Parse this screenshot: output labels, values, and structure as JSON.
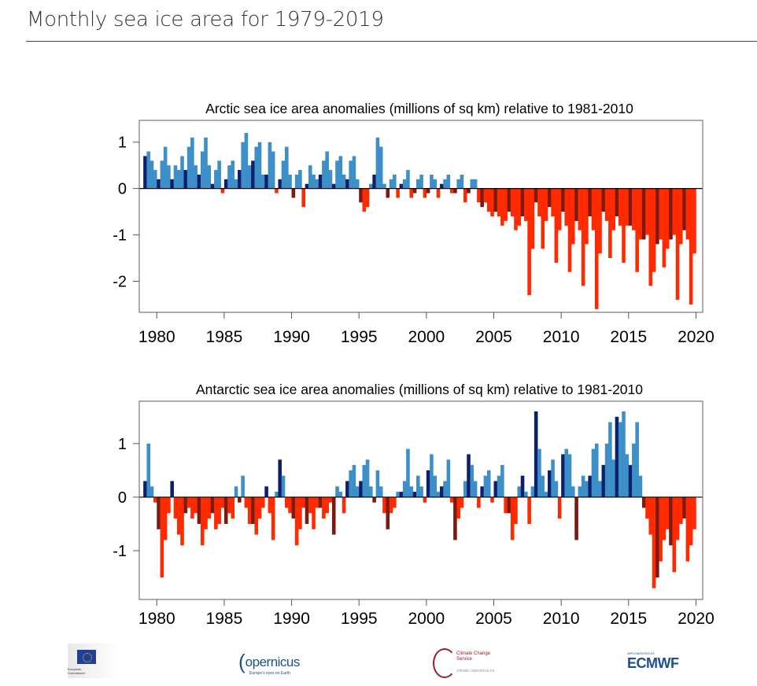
{
  "page": {
    "title": "Monthly sea ice area for 1979-2019"
  },
  "logos": {
    "eu": "European Commission",
    "copernicus": "opernicus",
    "copernicus_tagline": "Europe's eyes on Earth",
    "c3s": "Climate Change Service",
    "c3s_url": "climate.copernicus.eu",
    "ecmwf_implemented": "IMPLEMENTED BY",
    "ecmwf": "ECMWF"
  },
  "colors": {
    "positive": "#3d8fc8",
    "positive_dark": "#0c1f6e",
    "negative": "#ff2a00",
    "negative_dark": "#7a1a10"
  },
  "chart_data": [
    {
      "type": "bar",
      "title": "Arctic sea ice area anomalies (millions of sq km) relative to 1981-2010",
      "xlabel": "",
      "ylabel": "",
      "x_start": 1979,
      "x_step": 0.25,
      "xlim": [
        1978.7,
        2020.5
      ],
      "ylim": [
        -2.67,
        1.47
      ],
      "xticks": [
        "1980",
        "1985",
        "1990",
        "1995",
        "2000",
        "2005",
        "2010",
        "2015",
        "2020"
      ],
      "yticks": [
        "1",
        "0",
        "-1",
        "-2"
      ],
      "values": [
        0.7,
        0.8,
        0.6,
        0.4,
        0.2,
        0.6,
        0.9,
        0.5,
        0.2,
        0.5,
        0.4,
        0.7,
        0.4,
        0.9,
        1.1,
        0.5,
        0.3,
        0.8,
        1.1,
        0.5,
        0.1,
        0.4,
        0.6,
        -0.1,
        0.2,
        0.5,
        0.6,
        0.2,
        0.4,
        1.0,
        1.2,
        0.5,
        0.6,
        0.9,
        1.0,
        0.3,
        0.3,
        1.0,
        0.8,
        -0.1,
        0.2,
        0.6,
        0.9,
        0.3,
        -0.2,
        0.3,
        0.4,
        -0.4,
        0.1,
        0.5,
        0.3,
        0.2,
        0.3,
        0.6,
        0.8,
        0.4,
        0.1,
        0.6,
        0.7,
        0.3,
        0.2,
        0.6,
        0.7,
        0.2,
        -0.3,
        -0.5,
        -0.4,
        0.1,
        0.3,
        1.1,
        0.9,
        0.1,
        -0.2,
        0.2,
        0.3,
        -0.2,
        0.1,
        0.2,
        0.4,
        -0.2,
        -0.1,
        0.2,
        0.3,
        -0.2,
        -0.1,
        0.3,
        0.2,
        -0.2,
        0.1,
        0.2,
        0.3,
        -0.1,
        -0.1,
        0.2,
        0.3,
        -0.3,
        -0.1,
        0.2,
        0.2,
        -0.3,
        -0.4,
        -0.3,
        -0.5,
        -0.6,
        -0.5,
        -0.6,
        -0.8,
        -0.7,
        -0.5,
        -0.6,
        -0.9,
        -0.8,
        -0.6,
        -0.7,
        -2.3,
        -1.3,
        -0.3,
        -0.6,
        -1.3,
        -0.7,
        -0.4,
        -0.6,
        -1.6,
        -0.9,
        -0.5,
        -0.8,
        -1.8,
        -1.2,
        -0.7,
        -0.9,
        -2.1,
        -1.2,
        -0.6,
        -0.9,
        -2.6,
        -1.4,
        -0.5,
        -0.7,
        -1.5,
        -0.9,
        -0.6,
        -0.8,
        -1.6,
        -0.8,
        -0.8,
        -0.9,
        -1.8,
        -1.1,
        -1.1,
        -1.0,
        -2.1,
        -1.8,
        -1.2,
        -1.1,
        -1.7,
        -1.3,
        -1.1,
        -1.0,
        -2.4,
        -1.2,
        -0.9,
        -1.1,
        -2.5,
        -1.4
      ]
    },
    {
      "type": "bar",
      "title": "Antarctic sea ice area anomalies (millions of sq km) relative to 1981-2010",
      "xlabel": "",
      "ylabel": "",
      "x_start": 1979,
      "x_step": 0.25,
      "xlim": [
        1978.7,
        2020.5
      ],
      "ylim": [
        -1.91,
        1.79
      ],
      "xticks": [
        "1980",
        "1985",
        "1990",
        "1995",
        "2000",
        "2005",
        "2010",
        "2015",
        "2020"
      ],
      "yticks": [
        "1",
        "0",
        "-1"
      ],
      "values": [
        0.3,
        1.0,
        0.2,
        -0.1,
        -0.6,
        -1.5,
        -0.8,
        -0.3,
        0.3,
        -0.4,
        -0.7,
        -0.9,
        -0.3,
        -0.2,
        -0.4,
        -0.3,
        -0.5,
        -0.9,
        -0.6,
        -0.4,
        -0.3,
        -0.6,
        -0.5,
        -0.2,
        -0.5,
        -0.3,
        -0.4,
        0.2,
        -0.1,
        0.4,
        -0.2,
        -0.5,
        -0.5,
        -0.7,
        -0.4,
        -0.2,
        0.2,
        -0.3,
        -0.8,
        0.1,
        0.7,
        0.4,
        -0.2,
        -0.3,
        -0.4,
        -0.9,
        -0.6,
        -0.2,
        -0.5,
        -0.3,
        -0.6,
        -0.2,
        -0.2,
        -0.4,
        -0.3,
        -0.1,
        -0.7,
        0.2,
        0.1,
        -0.3,
        0.3,
        0.5,
        0.6,
        0.2,
        0.3,
        0.6,
        0.7,
        0.2,
        -0.1,
        0.5,
        0.2,
        -0.3,
        -0.6,
        -0.3,
        -0.2,
        0.1,
        0.1,
        0.3,
        0.9,
        0.2,
        0.1,
        0.4,
        0.2,
        -0.1,
        0.5,
        0.8,
        0.4,
        0.1,
        0.2,
        0.3,
        0.7,
        -0.1,
        -0.8,
        -0.4,
        -0.2,
        0.3,
        0.8,
        0.6,
        0.3,
        -0.2,
        0.2,
        0.4,
        0.5,
        -0.1,
        0.3,
        0.4,
        0.6,
        -0.3,
        -0.3,
        -0.8,
        -0.5,
        0.2,
        0.4,
        0.1,
        -0.5,
        0.2,
        1.6,
        0.9,
        0.4,
        0.1,
        0.5,
        0.7,
        0.3,
        -0.4,
        0.8,
        0.9,
        0.8,
        0.2,
        -0.8,
        0.2,
        0.4,
        0.3,
        0.4,
        0.9,
        1.0,
        0.3,
        0.6,
        1.0,
        1.4,
        0.7,
        1.5,
        1.4,
        1.6,
        0.8,
        0.6,
        1.0,
        1.4,
        0.4,
        -0.2,
        -0.4,
        -0.7,
        -1.7,
        -1.5,
        -1.2,
        -0.8,
        -0.6,
        -0.9,
        -1.4,
        -0.8,
        -0.5,
        -0.4,
        -1.2,
        -0.9,
        -0.6
      ]
    }
  ]
}
